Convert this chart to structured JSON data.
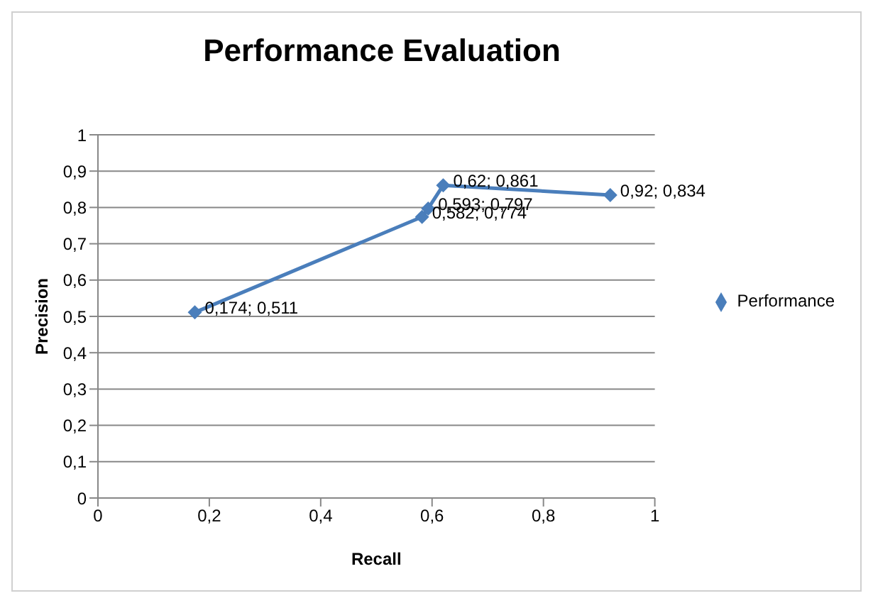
{
  "chart_data": {
    "type": "line",
    "title": "Performance Evaluation",
    "xlabel": "Recall",
    "ylabel": "Precision",
    "x": [
      0.174,
      0.582,
      0.593,
      0.62,
      0.92
    ],
    "series": [
      {
        "name": "Performance",
        "color": "#4a7ebb",
        "values": [
          0.511,
          0.774,
          0.797,
          0.861,
          0.834
        ],
        "value_labels": [
          "0,174; 0,511",
          "0,582; 0,774",
          "0,593; 0,797",
          "0,62; 0,861",
          "0,92; 0,834"
        ]
      }
    ],
    "xlim": [
      0,
      1
    ],
    "xticks": [
      0,
      {
        "value": 0.2,
        "label": "0,2"
      },
      {
        "value": 0.4,
        "label": "0,4"
      },
      {
        "value": 0.6,
        "label": "0,6"
      },
      {
        "value": 0.8,
        "label": "0,8"
      },
      1
    ],
    "ylim": [
      0,
      1
    ],
    "yticks": [
      0,
      {
        "value": 0.1,
        "label": "0,1"
      },
      {
        "value": 0.2,
        "label": "0,2"
      },
      {
        "value": 0.3,
        "label": "0,3"
      },
      {
        "value": 0.4,
        "label": "0,4"
      },
      {
        "value": 0.5,
        "label": "0,5"
      },
      {
        "value": 0.6,
        "label": "0,6"
      },
      {
        "value": 0.7,
        "label": "0,7"
      },
      {
        "value": 0.8,
        "label": "0,8"
      },
      {
        "value": 0.9,
        "label": "0,9"
      },
      1
    ],
    "grid": "y",
    "legend": "right",
    "marker": "diamond",
    "line_style": "solid"
  }
}
